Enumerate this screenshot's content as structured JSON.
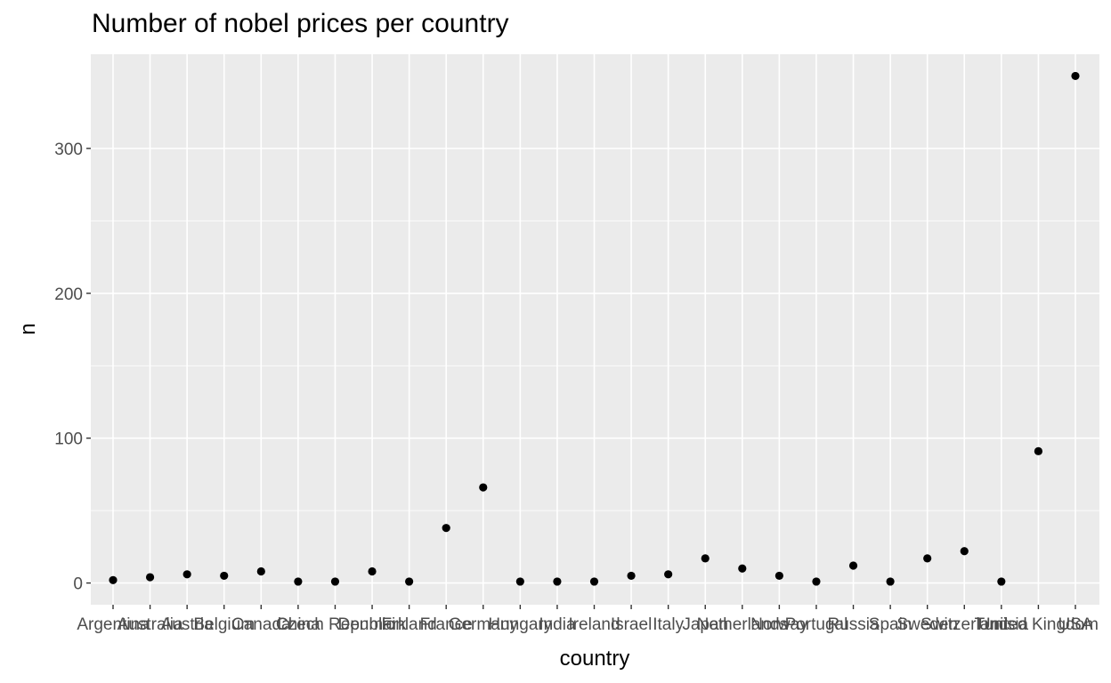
{
  "chart_data": {
    "type": "scatter",
    "title": "Number of nobel prices per country",
    "xlabel": "country",
    "ylabel": "n",
    "ylim": [
      -15,
      365
    ],
    "yticks": [
      0,
      100,
      200,
      300
    ],
    "grid": true,
    "categories": [
      "Argentina",
      "Australia",
      "Austria",
      "Belgium",
      "Canada",
      "China",
      "Czech Republic",
      "Denmark",
      "Finland",
      "France",
      "Germany",
      "Hungary",
      "India",
      "Ireland",
      "Israel",
      "Italy",
      "Japan",
      "Netherlands",
      "Norway",
      "Portugal",
      "Russia",
      "Spain",
      "Sweden",
      "Switzerland",
      "Tunisia",
      "United Kingdom",
      "USA"
    ],
    "values": [
      2,
      4,
      6,
      5,
      8,
      1,
      1,
      8,
      1,
      38,
      66,
      1,
      1,
      1,
      5,
      6,
      17,
      10,
      5,
      1,
      12,
      1,
      17,
      22,
      1,
      91,
      350
    ]
  }
}
